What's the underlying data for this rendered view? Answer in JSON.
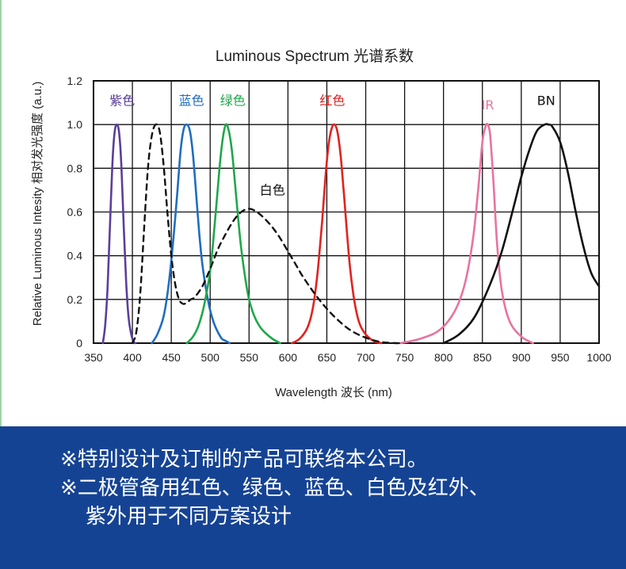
{
  "chart_data": {
    "type": "line",
    "title": "Luminous Spectrum 光谱系数",
    "xlabel": "Wavelength 波长 (nm)",
    "ylabel": "Relative Luminous Intesity 相对发光强度 (a.u.)",
    "xlim": [
      350,
      1000
    ],
    "ylim": [
      0,
      1.2
    ],
    "x_ticks": [
      350,
      400,
      450,
      500,
      550,
      600,
      650,
      700,
      750,
      800,
      850,
      900,
      950,
      1000
    ],
    "y_ticks": [
      0,
      0.2,
      0.4,
      0.6,
      0.8,
      1.0,
      1.2
    ],
    "y_tick_labels": [
      "0",
      "0.2",
      "0.4",
      "0.6",
      "0.8",
      "1.0",
      "1.2"
    ],
    "grid": true,
    "series": [
      {
        "name": "紫色",
        "color": "#5b3f9a",
        "dashed": false,
        "x": [
          362,
          365,
          368,
          371,
          374,
          377,
          380,
          383,
          386,
          389,
          392,
          395,
          398,
          401,
          404
        ],
        "y": [
          0.0,
          0.08,
          0.25,
          0.52,
          0.8,
          0.96,
          1.0,
          0.96,
          0.8,
          0.52,
          0.28,
          0.12,
          0.05,
          0.01,
          0.0
        ]
      },
      {
        "name": "蓝色",
        "color": "#1f6dc0",
        "dashed": false,
        "x": [
          425,
          432,
          440,
          446,
          452,
          458,
          462,
          466,
          470,
          474,
          478,
          482,
          486,
          490,
          495,
          500,
          505,
          510,
          515,
          520,
          525
        ],
        "y": [
          0.0,
          0.04,
          0.12,
          0.25,
          0.45,
          0.7,
          0.88,
          0.98,
          1.0,
          0.97,
          0.86,
          0.68,
          0.5,
          0.36,
          0.24,
          0.15,
          0.09,
          0.05,
          0.02,
          0.01,
          0.0
        ]
      },
      {
        "name": "绿色",
        "color": "#1fa84a",
        "dashed": false,
        "x": [
          470,
          478,
          485,
          492,
          500,
          506,
          512,
          516,
          520,
          524,
          528,
          532,
          536,
          540,
          545,
          550,
          556,
          563,
          570,
          580,
          590
        ],
        "y": [
          0.0,
          0.03,
          0.08,
          0.17,
          0.33,
          0.55,
          0.8,
          0.93,
          1.0,
          0.97,
          0.88,
          0.73,
          0.57,
          0.43,
          0.3,
          0.2,
          0.13,
          0.08,
          0.05,
          0.02,
          0.0
        ]
      },
      {
        "name": "红色",
        "color": "#e0231f",
        "dashed": false,
        "x": [
          605,
          615,
          625,
          632,
          638,
          644,
          648,
          652,
          656,
          660,
          664,
          668,
          672,
          676,
          680,
          686,
          692,
          700,
          710,
          720
        ],
        "y": [
          0.0,
          0.02,
          0.07,
          0.16,
          0.32,
          0.56,
          0.75,
          0.9,
          0.98,
          1.0,
          0.96,
          0.85,
          0.68,
          0.5,
          0.34,
          0.18,
          0.09,
          0.04,
          0.01,
          0.0
        ]
      },
      {
        "name": "IR",
        "color": "#e8739f",
        "dashed": false,
        "x": [
          745,
          770,
          795,
          815,
          828,
          838,
          845,
          850,
          854,
          857,
          860,
          864,
          869,
          875,
          885,
          900,
          915
        ],
        "y": [
          0.0,
          0.02,
          0.06,
          0.15,
          0.28,
          0.48,
          0.72,
          0.92,
          0.99,
          1.0,
          0.95,
          0.75,
          0.45,
          0.24,
          0.1,
          0.03,
          0.0
        ]
      },
      {
        "name": "BN",
        "color": "#111111",
        "dashed": false,
        "x": [
          800,
          820,
          840,
          860,
          875,
          890,
          900,
          910,
          920,
          930,
          935,
          940,
          950,
          960,
          970,
          980,
          990,
          1000
        ],
        "y": [
          0.0,
          0.04,
          0.12,
          0.27,
          0.42,
          0.62,
          0.76,
          0.88,
          0.97,
          1.0,
          1.0,
          0.99,
          0.92,
          0.78,
          0.6,
          0.44,
          0.32,
          0.26
        ]
      },
      {
        "name": "白色",
        "color": "#111111",
        "dashed": true,
        "x": [
          400,
          405,
          410,
          415,
          420,
          425,
          430,
          435,
          440,
          445,
          450,
          455,
          460,
          465,
          470,
          475,
          480,
          490,
          500,
          510,
          520,
          530,
          540,
          550,
          560,
          570,
          580,
          590,
          600,
          610,
          620,
          640,
          660,
          680,
          700,
          720,
          740,
          745
        ],
        "y": [
          0.0,
          0.05,
          0.22,
          0.52,
          0.8,
          0.95,
          1.0,
          0.97,
          0.82,
          0.6,
          0.4,
          0.27,
          0.2,
          0.18,
          0.185,
          0.2,
          0.21,
          0.26,
          0.34,
          0.43,
          0.5,
          0.56,
          0.6,
          0.615,
          0.6,
          0.57,
          0.53,
          0.48,
          0.42,
          0.36,
          0.3,
          0.2,
          0.12,
          0.06,
          0.025,
          0.005,
          0.0,
          0.0
        ]
      }
    ],
    "annotations": [
      {
        "text": "紫色",
        "color": "#5b3f9a"
      },
      {
        "text": "蓝色",
        "color": "#1f6dc0"
      },
      {
        "text": "绿色",
        "color": "#1fa84a"
      },
      {
        "text": "红色",
        "color": "#e0231f"
      },
      {
        "text": "IR",
        "color": "#e8739f"
      },
      {
        "text": "BN",
        "color": "#111111"
      },
      {
        "text": "白色",
        "color": "#111111"
      }
    ]
  },
  "footer": {
    "background": "#154394",
    "line1": "※特别设计及订制的产品可联络本公司。",
    "line2": "※二极管备用红色、绿色、蓝色、白色及红外、",
    "line3": "紫外用于不同方案设计"
  }
}
